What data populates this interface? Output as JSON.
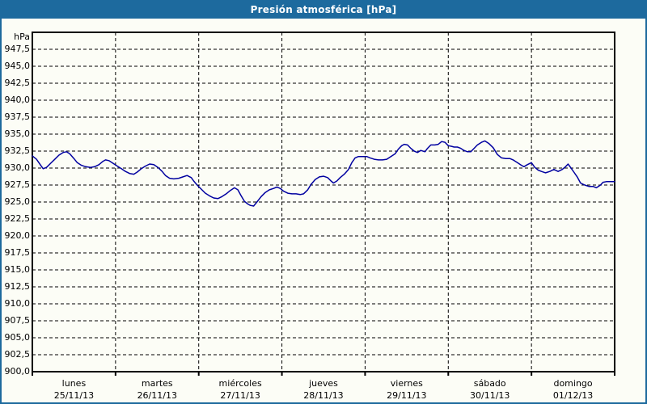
{
  "window": {
    "title": "Presión atmosférica [hPa]"
  },
  "colors": {
    "titlebar_bg": "#1d6a9e",
    "titlebar_text": "#ffffff",
    "frame": "#1d6a9e",
    "content_bg": "#fcfdf6",
    "grid": "#000000",
    "axis": "#000000",
    "line": "#0000a0",
    "label_text": "#000000"
  },
  "chart_data": {
    "type": "line",
    "title": "Presión atmosférica [hPa]",
    "xlabel": "",
    "ylabel": "hPa",
    "ylim": [
      900,
      950
    ],
    "y_grid_step": 2.5,
    "grid": true,
    "legend": false,
    "y_tick_labels": [
      {
        "value": 947.5,
        "label": "947,5"
      },
      {
        "value": 945.0,
        "label": "945,0"
      },
      {
        "value": 942.5,
        "label": "942,5"
      },
      {
        "value": 940.0,
        "label": "940,0"
      },
      {
        "value": 937.5,
        "label": "937,5"
      },
      {
        "value": 935.0,
        "label": "935,0"
      },
      {
        "value": 932.5,
        "label": "932,5"
      },
      {
        "value": 930.0,
        "label": "930,0"
      },
      {
        "value": 927.5,
        "label": "927,5"
      },
      {
        "value": 925.0,
        "label": "925,0"
      },
      {
        "value": 922.5,
        "label": "922,5"
      },
      {
        "value": 920.0,
        "label": "920,0"
      },
      {
        "value": 917.5,
        "label": "917,5"
      },
      {
        "value": 915.0,
        "label": "915,0"
      },
      {
        "value": 912.5,
        "label": "912,5"
      },
      {
        "value": 910.0,
        "label": "910,0"
      },
      {
        "value": 907.5,
        "label": "907,5"
      },
      {
        "value": 905.0,
        "label": "905,0"
      },
      {
        "value": 902.5,
        "label": "902,5"
      },
      {
        "value": 900.0,
        "label": "900,0"
      }
    ],
    "x_days": [
      {
        "name": "lunes",
        "date": "25/11/13"
      },
      {
        "name": "martes",
        "date": "26/11/13"
      },
      {
        "name": "miércoles",
        "date": "27/11/13"
      },
      {
        "name": "jueves",
        "date": "28/11/13"
      },
      {
        "name": "viernes",
        "date": "29/11/13"
      },
      {
        "name": "sábado",
        "date": "30/11/13"
      },
      {
        "name": "domingo",
        "date": "01/12/13"
      }
    ],
    "series": [
      {
        "name": "Presión atmosférica",
        "unit": "hPa",
        "points": [
          [
            0.0,
            931.8
          ],
          [
            0.05,
            931.3
          ],
          [
            0.1,
            930.4
          ],
          [
            0.13,
            929.9
          ],
          [
            0.17,
            930.1
          ],
          [
            0.22,
            930.7
          ],
          [
            0.27,
            931.3
          ],
          [
            0.32,
            931.9
          ],
          [
            0.37,
            932.3
          ],
          [
            0.41,
            932.4
          ],
          [
            0.45,
            932.1
          ],
          [
            0.5,
            931.4
          ],
          [
            0.54,
            930.8
          ],
          [
            0.59,
            930.4
          ],
          [
            0.64,
            930.2
          ],
          [
            0.7,
            930.1
          ],
          [
            0.75,
            930.2
          ],
          [
            0.8,
            930.5
          ],
          [
            0.85,
            931.0
          ],
          [
            0.88,
            931.2
          ],
          [
            0.92,
            931.1
          ],
          [
            0.97,
            930.7
          ],
          [
            1.02,
            930.3
          ],
          [
            1.07,
            929.9
          ],
          [
            1.12,
            929.5
          ],
          [
            1.17,
            929.2
          ],
          [
            1.22,
            929.1
          ],
          [
            1.26,
            929.4
          ],
          [
            1.31,
            929.9
          ],
          [
            1.36,
            930.3
          ],
          [
            1.41,
            930.6
          ],
          [
            1.46,
            930.5
          ],
          [
            1.51,
            930.1
          ],
          [
            1.56,
            929.5
          ],
          [
            1.6,
            928.9
          ],
          [
            1.65,
            928.5
          ],
          [
            1.7,
            928.4
          ],
          [
            1.76,
            928.5
          ],
          [
            1.81,
            928.7
          ],
          [
            1.86,
            928.9
          ],
          [
            1.91,
            928.6
          ],
          [
            1.94,
            928.1
          ],
          [
            1.98,
            927.5
          ],
          [
            2.03,
            926.9
          ],
          [
            2.08,
            926.3
          ],
          [
            2.13,
            925.9
          ],
          [
            2.18,
            925.6
          ],
          [
            2.23,
            925.5
          ],
          [
            2.28,
            925.8
          ],
          [
            2.33,
            926.2
          ],
          [
            2.38,
            926.7
          ],
          [
            2.43,
            927.1
          ],
          [
            2.47,
            926.8
          ],
          [
            2.51,
            925.9
          ],
          [
            2.55,
            925.1
          ],
          [
            2.59,
            924.7
          ],
          [
            2.62,
            924.5
          ],
          [
            2.66,
            924.4
          ],
          [
            2.7,
            925.0
          ],
          [
            2.75,
            925.8
          ],
          [
            2.8,
            926.4
          ],
          [
            2.85,
            926.8
          ],
          [
            2.9,
            927.0
          ],
          [
            2.94,
            927.2
          ],
          [
            2.98,
            927.0
          ],
          [
            3.02,
            926.6
          ],
          [
            3.07,
            926.3
          ],
          [
            3.12,
            926.2
          ],
          [
            3.17,
            926.2
          ],
          [
            3.22,
            926.1
          ],
          [
            3.26,
            926.2
          ],
          [
            3.31,
            926.8
          ],
          [
            3.35,
            927.6
          ],
          [
            3.4,
            928.3
          ],
          [
            3.45,
            928.7
          ],
          [
            3.5,
            928.8
          ],
          [
            3.55,
            928.6
          ],
          [
            3.59,
            928.1
          ],
          [
            3.62,
            927.8
          ],
          [
            3.66,
            928.1
          ],
          [
            3.7,
            928.6
          ],
          [
            3.75,
            929.1
          ],
          [
            3.8,
            929.8
          ],
          [
            3.84,
            930.8
          ],
          [
            3.88,
            931.5
          ],
          [
            3.92,
            931.7
          ],
          [
            3.97,
            931.7
          ],
          [
            4.02,
            931.7
          ],
          [
            4.06,
            931.5
          ],
          [
            4.11,
            931.3
          ],
          [
            4.16,
            931.2
          ],
          [
            4.21,
            931.2
          ],
          [
            4.26,
            931.3
          ],
          [
            4.31,
            931.7
          ],
          [
            4.36,
            932.1
          ],
          [
            4.4,
            932.8
          ],
          [
            4.44,
            933.3
          ],
          [
            4.47,
            933.5
          ],
          [
            4.51,
            933.4
          ],
          [
            4.55,
            932.9
          ],
          [
            4.59,
            932.5
          ],
          [
            4.63,
            932.3
          ],
          [
            4.67,
            932.6
          ],
          [
            4.72,
            932.4
          ],
          [
            4.75,
            932.9
          ],
          [
            4.79,
            933.4
          ],
          [
            4.84,
            933.4
          ],
          [
            4.88,
            933.5
          ],
          [
            4.92,
            933.9
          ],
          [
            4.96,
            933.8
          ],
          [
            5.0,
            933.3
          ],
          [
            5.04,
            933.2
          ],
          [
            5.07,
            933.1
          ],
          [
            5.11,
            933.1
          ],
          [
            5.15,
            932.9
          ],
          [
            5.19,
            932.6
          ],
          [
            5.23,
            932.4
          ],
          [
            5.27,
            932.4
          ],
          [
            5.31,
            932.9
          ],
          [
            5.35,
            933.4
          ],
          [
            5.4,
            933.8
          ],
          [
            5.44,
            934.0
          ],
          [
            5.49,
            933.6
          ],
          [
            5.54,
            933.0
          ],
          [
            5.59,
            932.0
          ],
          [
            5.64,
            931.5
          ],
          [
            5.69,
            931.4
          ],
          [
            5.74,
            931.4
          ],
          [
            5.78,
            931.2
          ],
          [
            5.83,
            930.8
          ],
          [
            5.88,
            930.4
          ],
          [
            5.91,
            930.2
          ],
          [
            5.95,
            930.5
          ],
          [
            6.0,
            930.8
          ],
          [
            6.04,
            930.1
          ],
          [
            6.08,
            929.7
          ],
          [
            6.12,
            929.5
          ],
          [
            6.17,
            929.3
          ],
          [
            6.22,
            929.5
          ],
          [
            6.27,
            929.8
          ],
          [
            6.32,
            929.5
          ],
          [
            6.37,
            929.8
          ],
          [
            6.41,
            930.2
          ],
          [
            6.44,
            930.6
          ],
          [
            6.47,
            930.1
          ],
          [
            6.51,
            929.4
          ],
          [
            6.55,
            928.7
          ],
          [
            6.59,
            927.8
          ],
          [
            6.64,
            927.5
          ],
          [
            6.69,
            927.3
          ],
          [
            6.74,
            927.3
          ],
          [
            6.78,
            927.1
          ],
          [
            6.83,
            927.5
          ],
          [
            6.86,
            927.9
          ],
          [
            6.9,
            928.0
          ],
          [
            6.95,
            928.0
          ],
          [
            7.0,
            928.0
          ]
        ]
      }
    ]
  }
}
